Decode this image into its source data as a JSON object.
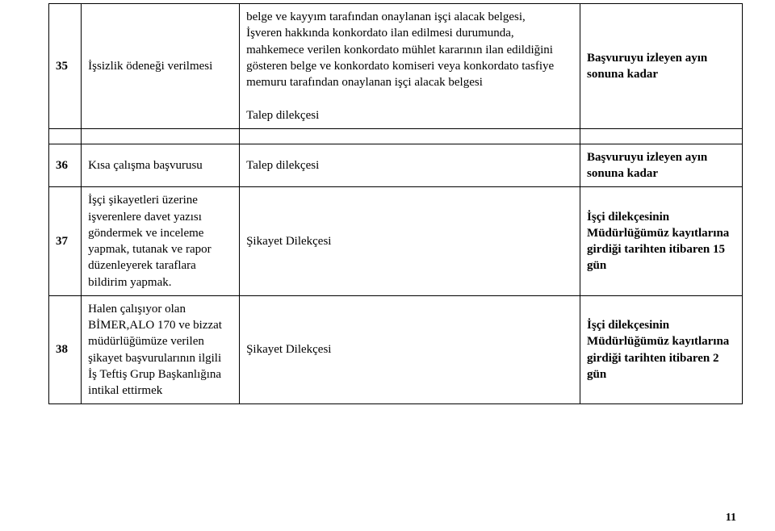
{
  "table": {
    "rows": [
      {
        "num": "35",
        "title": "İşsizlik ödeneği verilmesi",
        "desc": "belge ve kayyım tarafından onaylanan işçi alacak belgesi,\nİşveren hakkında konkordato ilan edilmesi durumunda, mahkemece verilen konkordato mühlet kararının ilan edildiğini gösteren belge ve konkordato komiseri veya konkordato tasfiye memuru tarafından onaylanan işçi alacak belgesi\n\nTalep dilekçesi",
        "time": "Başvuruyu izleyen ayın sonuna kadar",
        "time_bold": true
      },
      {
        "num": "36",
        "title": "Kısa çalışma başvurusu",
        "desc": "Talep dilekçesi",
        "time": "Başvuruyu izleyen ayın sonuna kadar",
        "time_bold": true
      },
      {
        "num": "37",
        "title": "İşçi şikayetleri üzerine işverenlere davet yazısı göndermek ve inceleme yapmak, tutanak ve rapor düzenleyerek taraflara bildirim yapmak.",
        "desc": "Şikayet Dilekçesi",
        "time": "İşçi dilekçesinin Müdürlüğümüz kayıtlarına girdiği tarihten itibaren 15 gün",
        "time_bold": true
      },
      {
        "num": "38",
        "title": "Halen çalışıyor olan BİMER,ALO 170 ve bizzat müdürlüğümüze verilen şikayet başvurularının ilgili İş Teftiş Grup Başkanlığına intikal ettirmek",
        "desc": "Şikayet Dilekçesi",
        "time": "İşçi dilekçesinin Müdürlüğümüz kayıtlarına girdiği tarihten itibaren 2 gün",
        "time_bold": true
      }
    ]
  },
  "page_number": "11"
}
